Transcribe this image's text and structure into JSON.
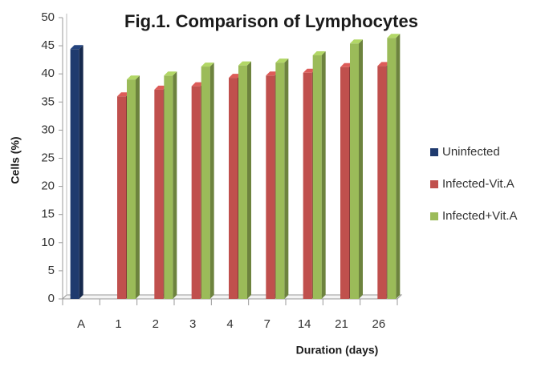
{
  "chart_data": {
    "type": "bar",
    "title": "Fig.1. Comparison of Lymphocytes",
    "x_label": "Duration (days)",
    "y_label": "Cells (%)",
    "categories": [
      "A",
      "1",
      "2",
      "3",
      "4",
      "7",
      "14",
      "21",
      "26"
    ],
    "series": [
      {
        "name": "Uninfected",
        "color": "#1f3a6e",
        "values": [
          44.4,
          null,
          null,
          null,
          null,
          null,
          null,
          null,
          null
        ]
      },
      {
        "name": "Infected-Vit.A",
        "color": "#c0504d",
        "values": [
          null,
          36,
          37.2,
          37.8,
          39.3,
          39.7,
          40.2,
          41.2,
          41.4
        ]
      },
      {
        "name": "Infected+Vit.A",
        "color": "#9bbb59",
        "values": [
          null,
          39,
          39.7,
          41.3,
          41.5,
          42,
          43.3,
          45.4,
          46.4
        ]
      }
    ],
    "ylim": [
      0,
      50
    ],
    "yticks": [
      0,
      5,
      10,
      15,
      20,
      25,
      30,
      35,
      40,
      45,
      50
    ],
    "legend": "right"
  }
}
